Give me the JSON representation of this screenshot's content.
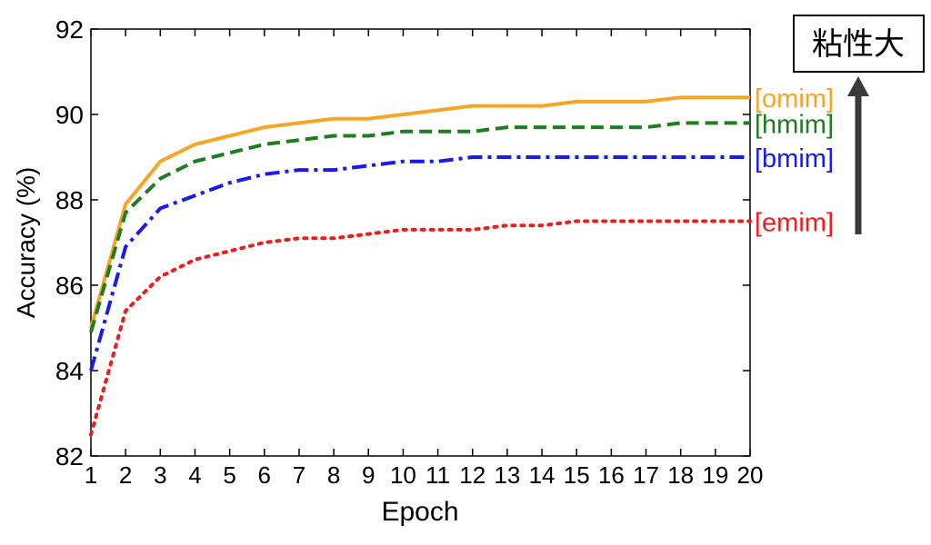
{
  "chart_data": {
    "type": "line",
    "title": "",
    "xlabel": "Epoch",
    "ylabel": "Accuracy (%)",
    "xlim": [
      1,
      20
    ],
    "ylim": [
      82,
      92
    ],
    "xticks": [
      "1",
      "2",
      "3",
      "4",
      "5",
      "6",
      "7",
      "8",
      "9",
      "10",
      "11",
      "12",
      "13",
      "14",
      "15",
      "16",
      "17",
      "18",
      "19",
      "20"
    ],
    "yticks": [
      "82",
      "84",
      "86",
      "88",
      "90",
      "92"
    ],
    "grid": false,
    "x": [
      1,
      2,
      3,
      4,
      5,
      6,
      7,
      8,
      9,
      10,
      11,
      12,
      13,
      14,
      15,
      16,
      17,
      18,
      19,
      20
    ],
    "series": [
      {
        "name": "[omim]",
        "color": "#f5a623",
        "style": "solid",
        "values": [
          85.0,
          87.9,
          88.9,
          89.3,
          89.5,
          89.7,
          89.8,
          89.9,
          89.9,
          90.0,
          90.1,
          90.2,
          90.2,
          90.2,
          90.3,
          90.3,
          90.3,
          90.4,
          90.4,
          90.4
        ]
      },
      {
        "name": "[hmim]",
        "color": "#1e7d1e",
        "style": "dashed",
        "values": [
          84.9,
          87.7,
          88.5,
          88.9,
          89.1,
          89.3,
          89.4,
          89.5,
          89.5,
          89.6,
          89.6,
          89.6,
          89.7,
          89.7,
          89.7,
          89.7,
          89.7,
          89.8,
          89.8,
          89.8
        ]
      },
      {
        "name": "[bmim]",
        "color": "#1a1aee",
        "style": "dashdot",
        "values": [
          84.0,
          86.9,
          87.8,
          88.1,
          88.4,
          88.6,
          88.7,
          88.7,
          88.8,
          88.9,
          88.9,
          89.0,
          89.0,
          89.0,
          89.0,
          89.0,
          89.0,
          89.0,
          89.0,
          89.0
        ]
      },
      {
        "name": "[emim]",
        "color": "#ee1c1c",
        "style": "dotted",
        "values": [
          82.5,
          85.4,
          86.2,
          86.6,
          86.8,
          87.0,
          87.1,
          87.1,
          87.2,
          87.3,
          87.3,
          87.3,
          87.4,
          87.4,
          87.5,
          87.5,
          87.5,
          87.5,
          87.5,
          87.5
        ]
      }
    ],
    "annotation": {
      "label": "粘性大",
      "arrow_color": "#3a3a3a"
    }
  }
}
